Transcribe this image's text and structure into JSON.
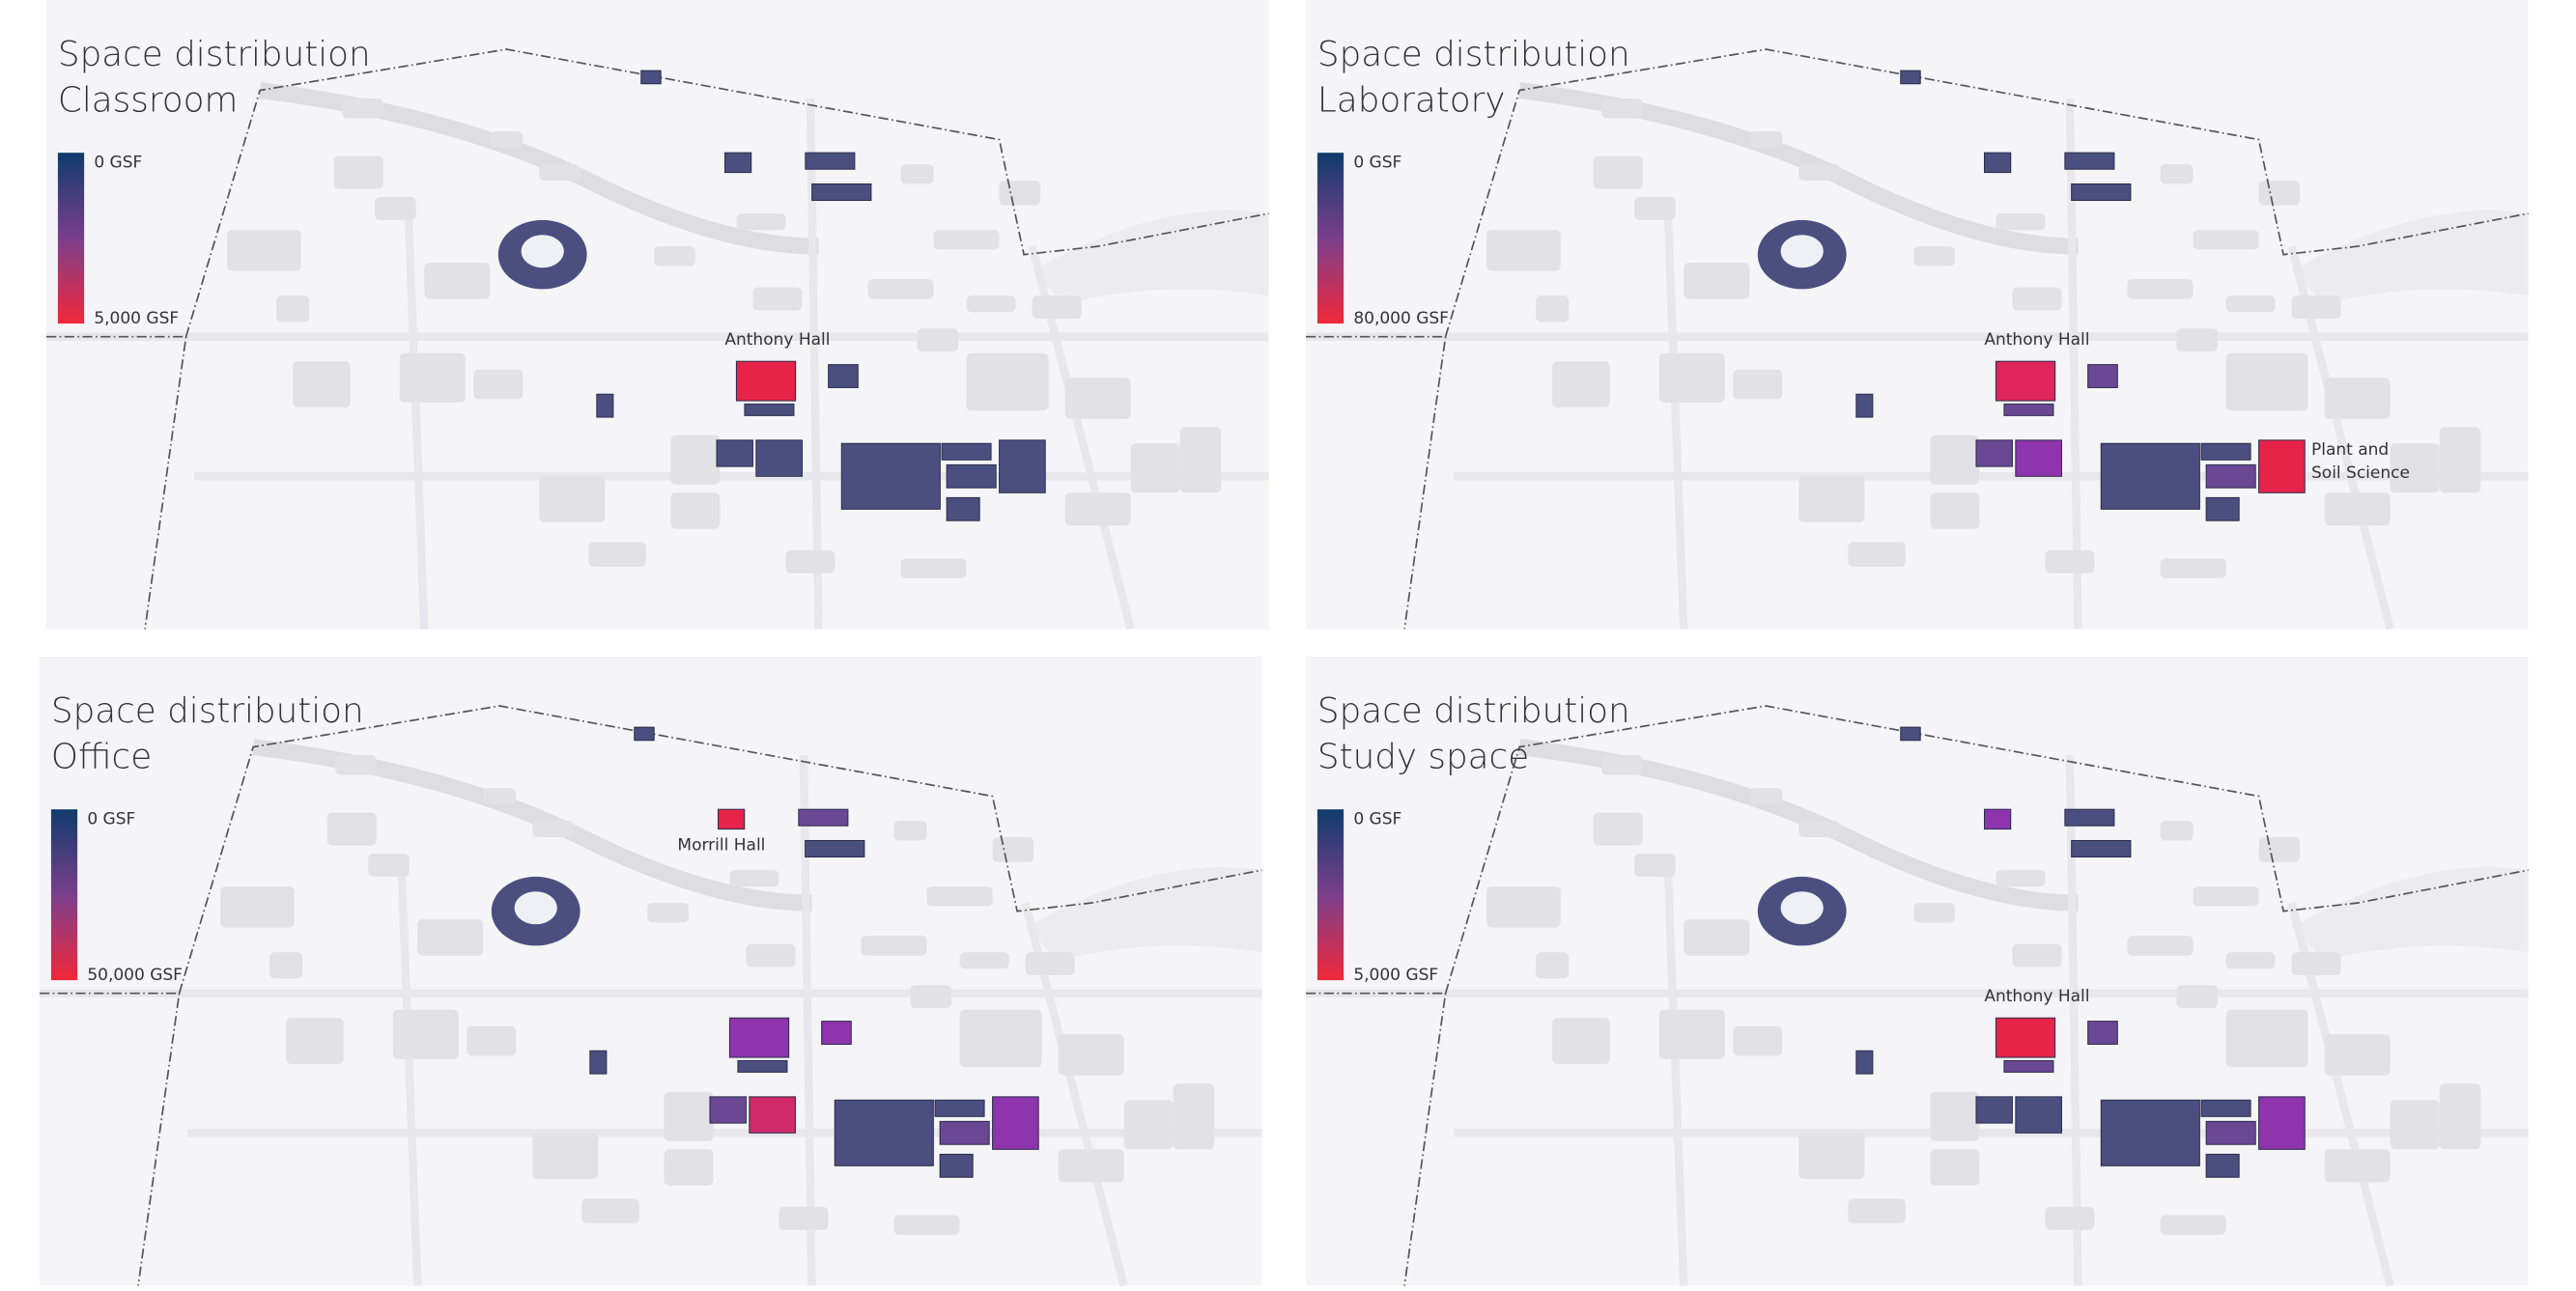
{
  "panels": [
    {
      "title": "Space distribution",
      "subtitle": "Classroom",
      "legend": {
        "min_label": "0 GSF",
        "max_label": "5,000 GSF"
      },
      "labels": [
        [
          "Anthony Hall"
        ]
      ]
    },
    {
      "title": "Space distribution",
      "subtitle": "Laboratory",
      "legend": {
        "min_label": "0 GSF",
        "max_label": "80,000 GSF"
      },
      "labels": [
        [
          "Anthony Hall"
        ],
        [
          "Plant and",
          "Soil Science"
        ]
      ]
    },
    {
      "title": "Space distribution",
      "subtitle": "Office",
      "legend": {
        "min_label": "0 GSF",
        "max_label": "50,000 GSF"
      },
      "labels": [
        [
          "Morrill Hall"
        ]
      ]
    },
    {
      "title": "Space distribution",
      "subtitle": "Study space",
      "legend": {
        "min_label": "0 GSF",
        "max_label": "5,000 GSF"
      },
      "labels": [
        [
          "Anthony Hall"
        ]
      ]
    }
  ]
}
